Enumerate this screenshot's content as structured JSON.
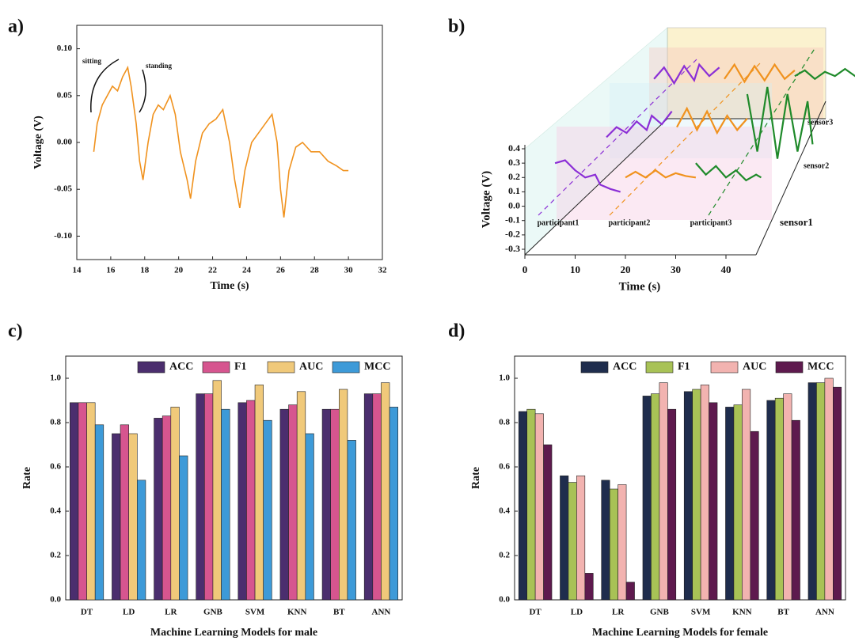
{
  "chart_data": [
    {
      "type": "line",
      "label": "a)",
      "xlabel": "Time (s)",
      "ylabel": "Voltage (V)",
      "color": "#f0921e",
      "annotations": [
        "sitting",
        "standing"
      ],
      "x": [
        15.0,
        15.2,
        15.5,
        15.8,
        16.1,
        16.4,
        16.7,
        17.0,
        17.2,
        17.5,
        17.7,
        17.9,
        18.2,
        18.5,
        18.8,
        19.1,
        19.5,
        19.8,
        20.1,
        20.5,
        20.7,
        21.0,
        21.4,
        21.8,
        22.2,
        22.6,
        23.0,
        23.3,
        23.6,
        23.9,
        24.3,
        24.7,
        25.1,
        25.5,
        25.8,
        26.0,
        26.2,
        26.5,
        26.9,
        27.3,
        27.8,
        28.3,
        28.8,
        29.3,
        29.7,
        30.0
      ],
      "values": [
        -0.01,
        0.02,
        0.04,
        0.05,
        0.06,
        0.055,
        0.07,
        0.08,
        0.06,
        0.02,
        -0.02,
        -0.04,
        0.0,
        0.03,
        0.04,
        0.035,
        0.05,
        0.03,
        -0.01,
        -0.04,
        -0.06,
        -0.02,
        0.01,
        0.02,
        0.025,
        0.035,
        0.0,
        -0.04,
        -0.07,
        -0.03,
        0.0,
        0.01,
        0.02,
        0.03,
        0.0,
        -0.05,
        -0.08,
        -0.03,
        -0.005,
        0.0,
        -0.01,
        -0.01,
        -0.02,
        -0.025,
        -0.03,
        -0.03
      ],
      "xlim": [
        14,
        32
      ],
      "xticks": [
        14,
        16,
        18,
        20,
        22,
        24,
        26,
        28,
        30,
        32
      ],
      "ylim": [
        -0.125,
        0.125
      ],
      "yticks": [
        {
          "value": -0.1,
          "label": "-0.10"
        },
        {
          "value": -0.05,
          "label": "-0.05"
        },
        {
          "value": 0,
          "label": "0.00"
        },
        {
          "value": 0.05,
          "label": "0.05"
        },
        {
          "value": 0.1,
          "label": "0.10"
        }
      ]
    },
    {
      "type": "line3d",
      "label": "b)",
      "xlabel": "Time (s)",
      "ylabel": "Voltage (V)",
      "depth_labels": [
        "sensor1",
        "sensor2",
        "sensor3"
      ],
      "xlim": [
        0,
        47
      ],
      "xticks": [
        0,
        10,
        20,
        30,
        40
      ],
      "ylim": [
        -0.3,
        0.4
      ],
      "yticks": [
        -0.3,
        -0.2,
        -0.1,
        {
          "value": 0,
          "label": "0.0"
        },
        0.1,
        0.2,
        0.3,
        0.4
      ],
      "series": [
        {
          "name": "participant1",
          "color": "#8b2fd6",
          "traces": [
            {
              "x": [
                6,
                8,
                10,
                12,
                14,
                15,
                17,
                19
              ],
              "values": [
                0.3,
                0.32,
                0.25,
                0.2,
                0.22,
                0.15,
                0.12,
                0.1
              ]
            },
            {
              "x": [
                6,
                8,
                10,
                12,
                14,
                15,
                17,
                19
              ],
              "values": [
                0.15,
                0.22,
                0.18,
                0.26,
                0.2,
                0.3,
                0.24,
                0.33
              ]
            },
            {
              "x": [
                6,
                8,
                10,
                12,
                14,
                15,
                17,
                19
              ],
              "values": [
                0.28,
                0.36,
                0.25,
                0.37,
                0.27,
                0.38,
                0.3,
                0.36
              ]
            }
          ]
        },
        {
          "name": "participant2",
          "color": "#f0921e",
          "traces": [
            {
              "x": [
                20,
                22,
                24,
                26,
                28,
                30,
                32,
                34
              ],
              "values": [
                0.2,
                0.24,
                0.2,
                0.25,
                0.2,
                0.23,
                0.21,
                0.2
              ]
            },
            {
              "x": [
                20,
                22,
                24,
                26,
                28,
                30,
                32,
                34
              ],
              "values": [
                0.22,
                0.35,
                0.2,
                0.33,
                0.18,
                0.3,
                0.2,
                0.28
              ]
            },
            {
              "x": [
                20,
                22,
                24,
                26,
                28,
                30,
                32,
                34
              ],
              "values": [
                0.28,
                0.38,
                0.26,
                0.37,
                0.27,
                0.38,
                0.28,
                0.34
              ]
            }
          ]
        },
        {
          "name": "participant3",
          "color": "#1f8a2a",
          "traces": [
            {
              "x": [
                34,
                36,
                38,
                40,
                42,
                44,
                46,
                47
              ],
              "values": [
                0.3,
                0.22,
                0.28,
                0.2,
                0.25,
                0.18,
                0.22,
                0.2
              ]
            },
            {
              "x": [
                34,
                36,
                38,
                40,
                42,
                44,
                46,
                47
              ],
              "values": [
                0.45,
                0.05,
                0.5,
                0.0,
                0.45,
                0.05,
                0.4,
                0.1
              ]
            },
            {
              "x": [
                34,
                36,
                38,
                40,
                42,
                44,
                46,
                47
              ],
              "values": [
                0.3,
                0.34,
                0.28,
                0.33,
                0.3,
                0.35,
                0.3,
                0.32
              ]
            }
          ]
        }
      ]
    },
    {
      "type": "bar",
      "label": "c)",
      "xlabel": "Machine Learning Models for male",
      "ylabel": "Rate",
      "legend": "upper right",
      "categories": [
        "DT",
        "LD",
        "LR",
        "GNB",
        "SVM",
        "KNN",
        "BT",
        "ANN"
      ],
      "series": [
        {
          "name": "ACC",
          "color": "#4b2e6e",
          "values": [
            0.89,
            0.75,
            0.82,
            0.93,
            0.89,
            0.86,
            0.86,
            0.93
          ]
        },
        {
          "name": "F1",
          "color": "#d6558f",
          "values": [
            0.89,
            0.79,
            0.83,
            0.93,
            0.9,
            0.88,
            0.86,
            0.93
          ]
        },
        {
          "name": "AUC",
          "color": "#f0c97a",
          "values": [
            0.89,
            0.75,
            0.87,
            0.99,
            0.97,
            0.94,
            0.95,
            0.98
          ]
        },
        {
          "name": "MCC",
          "color": "#3d9ad8",
          "values": [
            0.79,
            0.54,
            0.65,
            0.86,
            0.81,
            0.75,
            0.72,
            0.87
          ]
        }
      ],
      "ylim": [
        0,
        1.1
      ],
      "yticks": [
        {
          "value": 0,
          "label": "0.0"
        },
        0.2,
        0.4,
        0.6,
        0.8,
        {
          "value": 1,
          "label": "1.0"
        }
      ]
    },
    {
      "type": "bar",
      "label": "d)",
      "xlabel": "Machine Learning Models for female",
      "ylabel": "Rate",
      "legend": "upper right",
      "categories": [
        "DT",
        "LD",
        "LR",
        "GNB",
        "SVM",
        "KNN",
        "BT",
        "ANN"
      ],
      "series": [
        {
          "name": "ACC",
          "color": "#1f2d4d",
          "values": [
            0.85,
            0.56,
            0.54,
            0.92,
            0.94,
            0.87,
            0.9,
            0.98
          ]
        },
        {
          "name": "F1",
          "color": "#a8c256",
          "values": [
            0.86,
            0.53,
            0.5,
            0.93,
            0.95,
            0.88,
            0.91,
            0.98
          ]
        },
        {
          "name": "AUC",
          "color": "#f2b3b0",
          "values": [
            0.84,
            0.56,
            0.52,
            0.98,
            0.97,
            0.95,
            0.93,
            1.0
          ]
        },
        {
          "name": "MCC",
          "color": "#5e1a4e",
          "values": [
            0.7,
            0.12,
            0.08,
            0.86,
            0.89,
            0.76,
            0.81,
            0.96
          ]
        }
      ],
      "ylim": [
        0,
        1.1
      ],
      "yticks": [
        {
          "value": 0,
          "label": "0.0"
        },
        0.2,
        0.4,
        0.6,
        0.8,
        {
          "value": 1,
          "label": "1.0"
        }
      ]
    }
  ]
}
